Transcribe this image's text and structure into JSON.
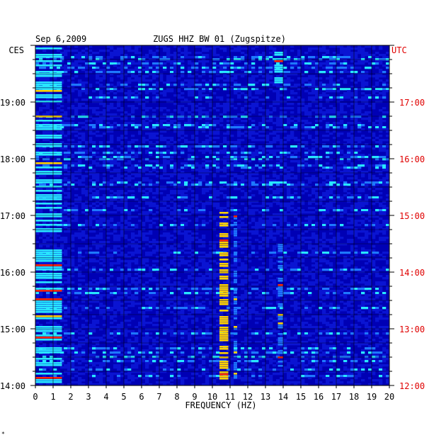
{
  "chart_data": {
    "type": "heatmap",
    "title": "ZUGS HHZ BW 01 (Zugspitze)",
    "date": "Sep 6,2009",
    "left_timezone": "CES",
    "right_timezone": "UTC",
    "xlabel": "FREQUENCY (HZ)",
    "xlim": [
      0,
      20
    ],
    "x_ticks": [
      "0",
      "1",
      "2",
      "3",
      "4",
      "5",
      "6",
      "7",
      "8",
      "9",
      "10",
      "11",
      "12",
      "13",
      "14",
      "15",
      "16",
      "17",
      "18",
      "19",
      "20"
    ],
    "ylim_local_hours": [
      14.0,
      20.0
    ],
    "y_ticks_local": [
      "14:00",
      "15:00",
      "16:00",
      "17:00",
      "18:00",
      "19:00"
    ],
    "y_ticks_utc": [
      "12:00",
      "13:00",
      "14:00",
      "15:00",
      "16:00",
      "17:00"
    ],
    "grid": true,
    "colors": {
      "background": "#0000b4",
      "low": "#0a14d2",
      "mid": "#1e78ff",
      "high": "#28e6ff",
      "peak": "#ffd200",
      "max": "#ff2800",
      "utc_label": "#e00000"
    },
    "energy_bands": [
      {
        "freq_hz": [
          0.0,
          1.5
        ],
        "level": "high",
        "local_time": [
          14.0,
          20.0
        ]
      },
      {
        "freq_hz": [
          10.4,
          10.9
        ],
        "level": "peak",
        "local_time": [
          14.1,
          17.1
        ]
      },
      {
        "freq_hz": [
          11.2,
          11.4
        ],
        "level": "mid",
        "local_time": [
          14.1,
          17.0
        ]
      },
      {
        "freq_hz": [
          13.7,
          14.0
        ],
        "level": "mid",
        "local_time": [
          14.2,
          16.5
        ]
      },
      {
        "freq_hz": [
          13.5,
          14.0
        ],
        "level": "high",
        "local_time": [
          19.3,
          20.0
        ]
      }
    ]
  }
}
